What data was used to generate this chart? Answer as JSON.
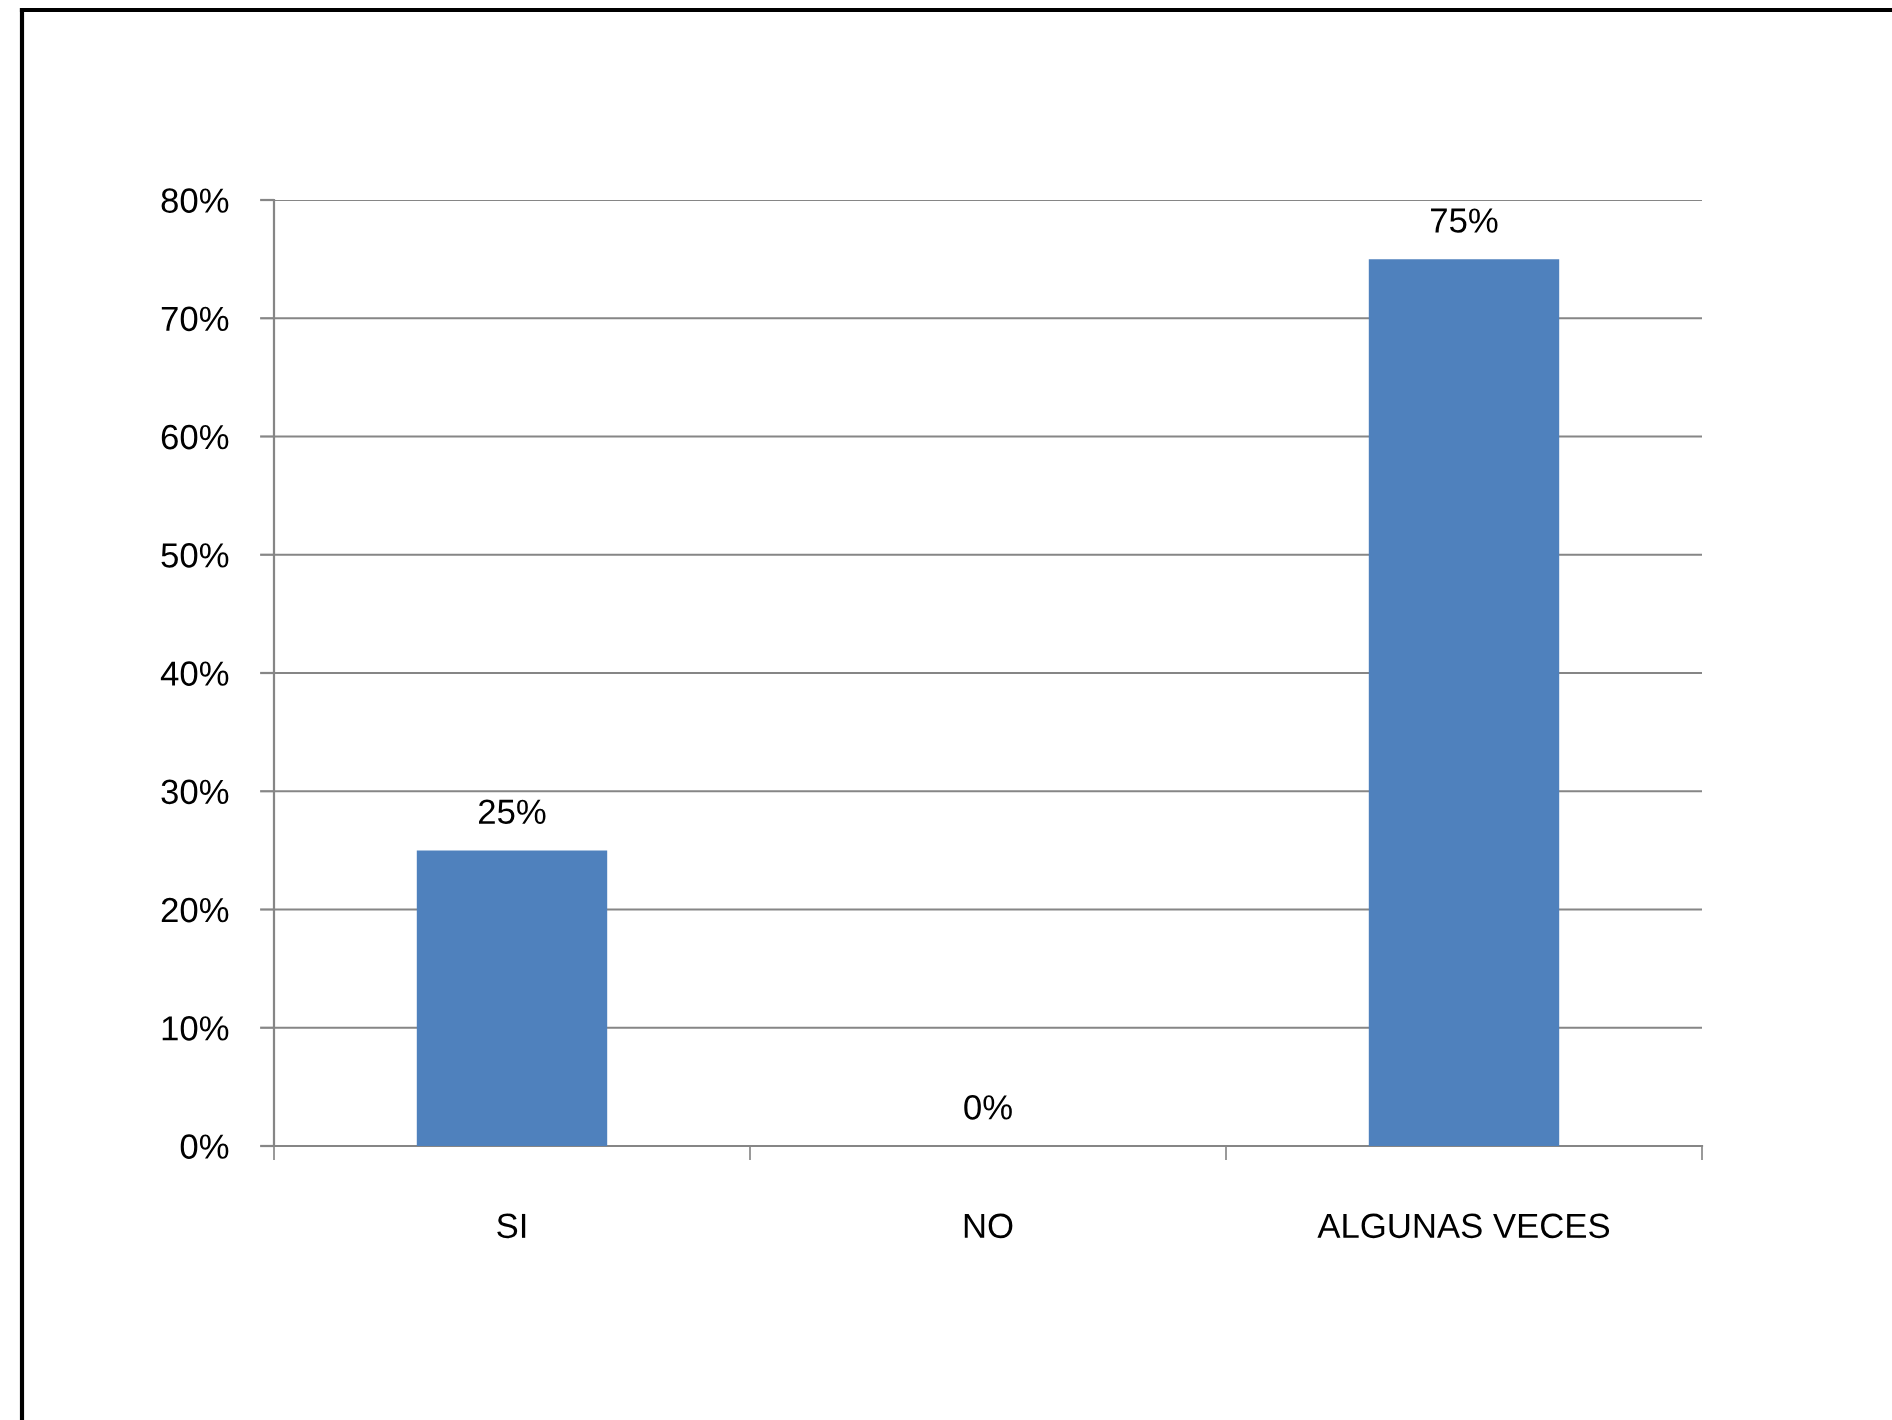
{
  "chart_data": {
    "type": "bar",
    "categories": [
      "SI",
      "NO",
      "ALGUNAS VECES"
    ],
    "values": [
      25,
      0,
      75
    ],
    "value_labels": [
      "25%",
      "0%",
      "75%"
    ],
    "color": "#4f81bd",
    "ylim": [
      0,
      80
    ],
    "yticks": [
      {
        "value": 0,
        "label": "0%"
      },
      {
        "value": 10,
        "label": "10%"
      },
      {
        "value": 20,
        "label": "20%"
      },
      {
        "value": 30,
        "label": "30%"
      },
      {
        "value": 40,
        "label": "40%"
      },
      {
        "value": 50,
        "label": "50%"
      },
      {
        "value": 60,
        "label": "60%"
      },
      {
        "value": 70,
        "label": "70%"
      },
      {
        "value": 80,
        "label": "80%"
      }
    ],
    "grid": "y",
    "legend": false
  }
}
